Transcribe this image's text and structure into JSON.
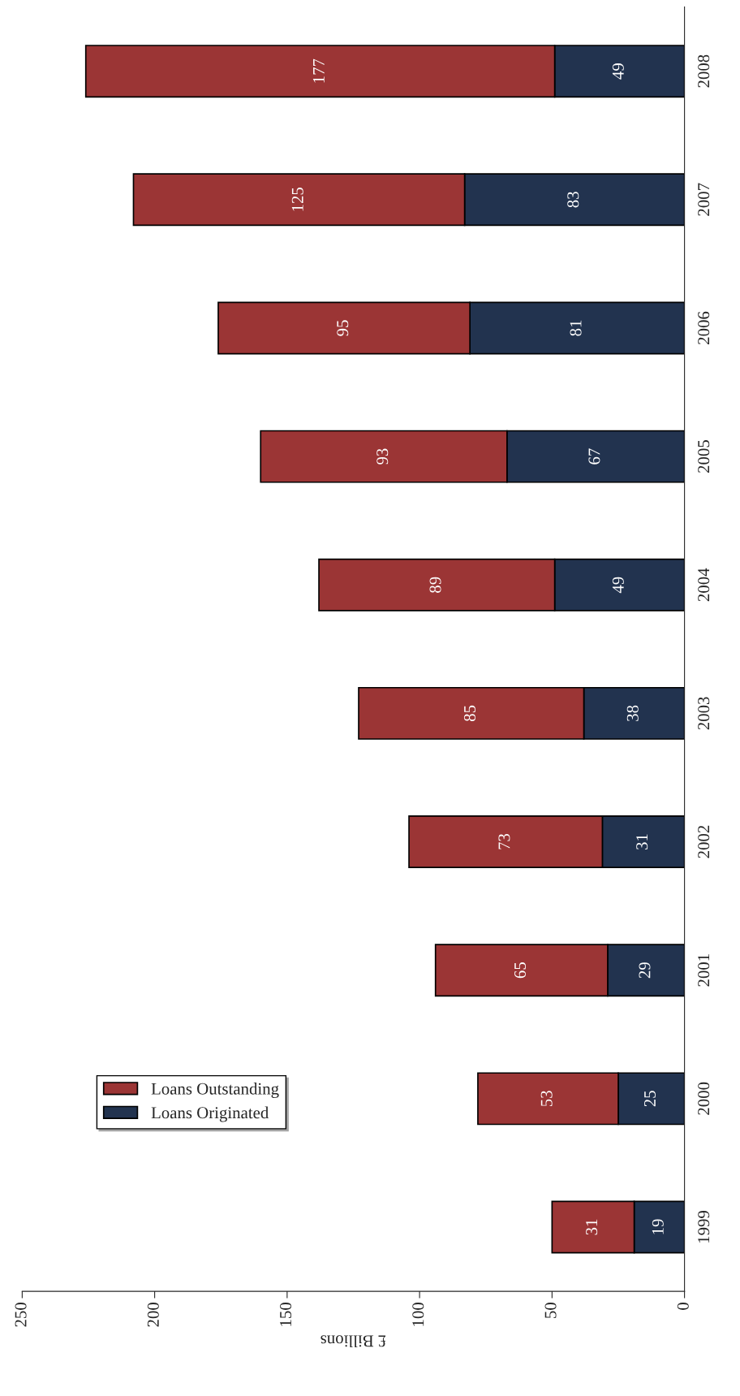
{
  "chart_data": {
    "type": "bar",
    "orientation": "horizontal",
    "stacked": true,
    "xlabel": "£ Billions",
    "categories": [
      "2008",
      "2007",
      "2006",
      "2005",
      "2004",
      "2003",
      "2002",
      "2001",
      "2000",
      "1999"
    ],
    "series": [
      {
        "name": "Loans Originated",
        "color": "#22334f",
        "values": [
          49,
          83,
          81,
          67,
          49,
          38,
          31,
          29,
          25,
          19
        ]
      },
      {
        "name": "Loans Outstanding",
        "color": "#9b3535",
        "values": [
          177,
          125,
          95,
          93,
          89,
          85,
          73,
          65,
          53,
          31
        ]
      }
    ],
    "xlim": [
      250,
      0
    ],
    "xticks": [
      0,
      50,
      100,
      150,
      200,
      250
    ],
    "data_labels": true,
    "legend": "bottom left",
    "grid": false
  }
}
